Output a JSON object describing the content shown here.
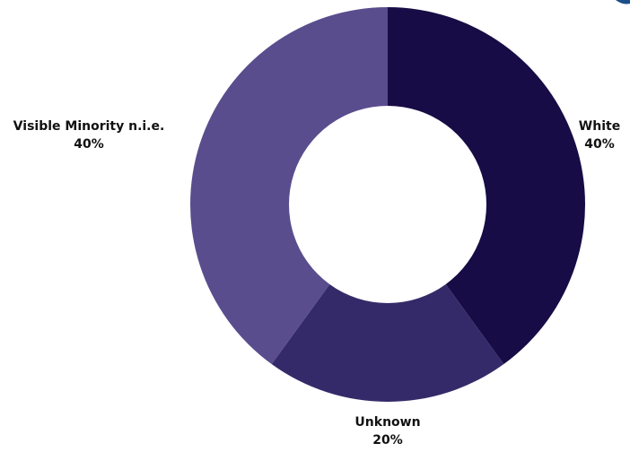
{
  "chart_data": {
    "type": "pie",
    "title": "",
    "categories": [
      "White",
      "Unknown",
      "Visible Minority n.i.e."
    ],
    "values": [
      40,
      20,
      40
    ],
    "labels": [
      {
        "name": "White",
        "pct": "40%"
      },
      {
        "name": "Unknown",
        "pct": "20%"
      },
      {
        "name": "Visible Minority n.i.e.",
        "pct": "40%"
      }
    ],
    "colors": [
      "#170c45",
      "#352a69",
      "#5a4d8e"
    ],
    "hole": 0.5,
    "legend": "none"
  }
}
